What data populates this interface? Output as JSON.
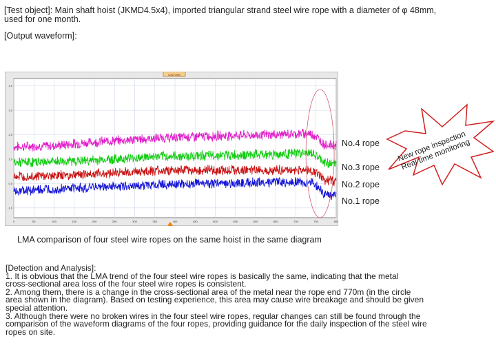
{
  "intro": {
    "line1": "[Test object]: Main shaft hoist (JKMD4.5x4), imported triangular strand steel wire rope with a diameter of φ 48mm,",
    "line2": "used for one month.",
    "output_heading": "[Output waveform]:"
  },
  "chart_data": {
    "type": "line",
    "title": "LMA View",
    "x_ticks": [
      "0",
      "50",
      "100",
      "150",
      "200",
      "250",
      "300",
      "350",
      "400",
      "450",
      "500",
      "550",
      "600",
      "650",
      "700",
      "750",
      "800"
    ],
    "y_ticks": [
      "4.0",
      "3.0",
      "2.0",
      "1.0",
      "0.0",
      "-1.0"
    ],
    "xlim": [
      0,
      800
    ],
    "ylim": [
      -1.4,
      4.3
    ],
    "grid": true,
    "series": [
      {
        "name": "No.4 rope",
        "color": "#e020c8",
        "x": [
          0,
          100,
          200,
          350,
          500,
          650,
          730,
          745,
          770,
          800
        ],
        "y": [
          1.5,
          1.55,
          1.7,
          1.85,
          1.95,
          2.0,
          2.05,
          2.0,
          1.6,
          1.55
        ]
      },
      {
        "name": "No.3 rope",
        "color": "#10cc10",
        "x": [
          0,
          100,
          200,
          350,
          500,
          650,
          730,
          745,
          770,
          800
        ],
        "y": [
          0.85,
          0.9,
          0.95,
          1.1,
          1.15,
          1.2,
          1.25,
          1.2,
          0.85,
          0.8
        ]
      },
      {
        "name": "No.2 rope",
        "color": "#c81010",
        "x": [
          0,
          100,
          200,
          350,
          500,
          650,
          730,
          745,
          770,
          800
        ],
        "y": [
          0.3,
          0.32,
          0.4,
          0.52,
          0.55,
          0.55,
          0.55,
          0.5,
          0.15,
          0.1
        ]
      },
      {
        "name": "No.1 rope",
        "color": "#1414d8",
        "x": [
          0,
          100,
          200,
          350,
          500,
          650,
          730,
          745,
          770,
          800
        ],
        "y": [
          -0.3,
          -0.25,
          -0.15,
          -0.05,
          0.0,
          0.05,
          0.05,
          0.0,
          -0.45,
          -0.5
        ]
      }
    ],
    "highlight_region_x": [
      725,
      795
    ]
  },
  "rope_labels": [
    "No.4 rope",
    "No.3 rope",
    "No.2 rope",
    "No.1 rope"
  ],
  "starburst": {
    "line1": "New rope inspection",
    "line2": "Real time monitoring",
    "fill": "#ffffff",
    "stroke": "#d02020"
  },
  "caption": "LMA comparison of four steel wire ropes on the same hoist in the same diagram",
  "analysis": [
    "[Detection and Analysis]:",
    "1. It is obvious that the LMA trend of the four steel wire ropes is basically the same, indicating that the metal",
    "cross-sectional area loss of the four steel wire ropes is consistent.",
    "2. Among them, there is a change in the cross-sectional area of the metal near the rope end 770m (in the circle",
    "area shown in the diagram). Based on testing experience, this area may cause wire breakage and should be given",
    "special attention.",
    "3. Although there were no broken wires in the four steel wire ropes, regular changes can still be found through the",
    "comparison of the waveform diagrams of the four ropes, providing guidance for the daily inspection of the steel wire",
    " ropes on site."
  ]
}
